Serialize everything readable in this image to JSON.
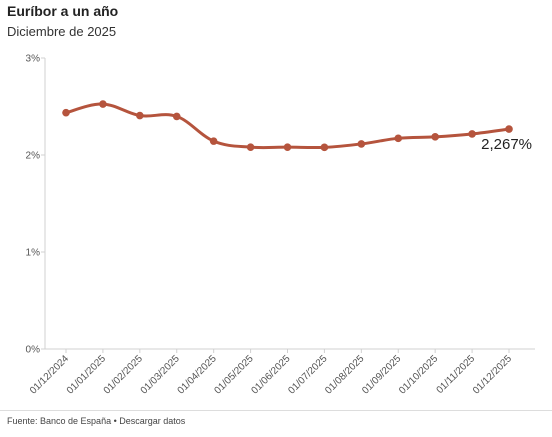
{
  "header": {
    "title": "Euríbor a un año",
    "subtitle": "Diciembre de 2025"
  },
  "chart_data": {
    "type": "line",
    "x": [
      "01/12/2024",
      "01/01/2025",
      "01/02/2025",
      "01/03/2025",
      "01/04/2025",
      "01/05/2025",
      "01/06/2025",
      "01/07/2025",
      "01/08/2025",
      "01/09/2025",
      "01/10/2025",
      "01/11/2025",
      "01/12/2025"
    ],
    "series": [
      {
        "values": [
          2.436,
          2.525,
          2.407,
          2.398,
          2.143,
          2.081,
          2.081,
          2.079,
          2.114,
          2.172,
          2.187,
          2.217,
          2.267
        ]
      }
    ],
    "ylim": [
      0,
      3
    ],
    "yticks": [
      "0%",
      "1%",
      "2%",
      "3%"
    ],
    "end_label": "2,267%",
    "grid": false,
    "line_color": "#b5543d"
  },
  "footer": {
    "source": "Fuente: Banco de España",
    "separator": " • ",
    "download": "Descargar datos"
  }
}
